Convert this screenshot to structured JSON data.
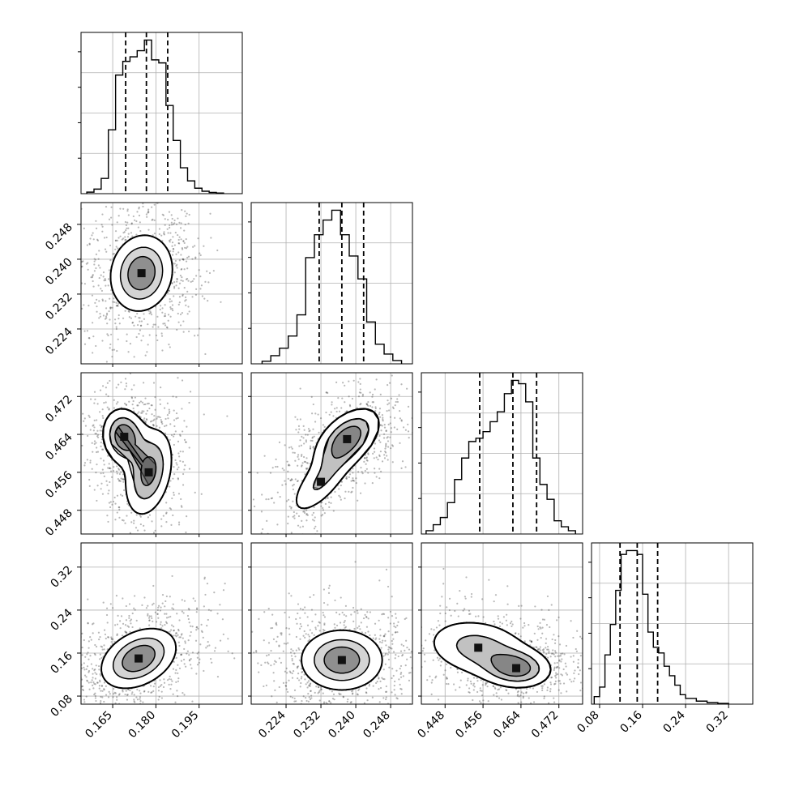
{
  "chart_data": {
    "type": "corner",
    "grid": true,
    "parameters": [
      {
        "id": "p0",
        "range": [
          0.154,
          0.21
        ],
        "ticks": [
          0.165,
          0.18,
          0.195
        ],
        "tick_labels": [
          "0.165",
          "0.180",
          "0.195"
        ],
        "quantiles": [
          0.1695,
          0.1767,
          0.1841
        ],
        "mean": 0.1767,
        "sd": 0.0072
      },
      {
        "id": "p1",
        "range": [
          0.216,
          0.253
        ],
        "ticks": [
          0.224,
          0.232,
          0.24,
          0.248
        ],
        "tick_labels": [
          "0.224",
          "0.232",
          "0.240",
          "0.248"
        ],
        "quantiles": [
          0.2316,
          0.2368,
          0.2418
        ],
        "mean": 0.2368,
        "sd": 0.0051
      },
      {
        "id": "p2",
        "range": [
          0.443,
          0.477
        ],
        "ticks": [
          0.448,
          0.456,
          0.464,
          0.472
        ],
        "tick_labels": [
          "0.448",
          "0.456",
          "0.464",
          "0.472"
        ],
        "quantiles": [
          0.4553,
          0.4623,
          0.4673
        ],
        "mean": 0.4618,
        "sd": 0.0057
      },
      {
        "id": "p3",
        "range": [
          0.065,
          0.365
        ],
        "ticks": [
          0.08,
          0.16,
          0.24,
          0.32
        ],
        "tick_labels": [
          "0.08",
          "0.16",
          "0.24",
          "0.32"
        ],
        "quantiles": [
          0.118,
          0.15,
          0.188
        ],
        "mean": 0.15,
        "sd": 0.034
      }
    ],
    "histograms": [
      {
        "param": "p0",
        "bins": [
          0.156,
          0.1585,
          0.161,
          0.1635,
          0.166,
          0.1685,
          0.171,
          0.1735,
          0.176,
          0.1785,
          0.181,
          0.1835,
          0.186,
          0.1885,
          0.191,
          0.1935,
          0.196,
          0.1985,
          0.201,
          0.2035
        ],
        "counts": [
          5,
          15,
          50,
          210,
          390,
          435,
          450,
          470,
          505,
          440,
          430,
          290,
          175,
          85,
          42,
          18,
          8,
          4,
          2
        ]
      },
      {
        "param": "p1",
        "bins": [
          0.2185,
          0.2205,
          0.2225,
          0.2245,
          0.2265,
          0.2285,
          0.2305,
          0.2325,
          0.2345,
          0.2365,
          0.2385,
          0.2405,
          0.2425,
          0.2445,
          0.2465,
          0.2485,
          0.2505
        ],
        "counts": [
          8,
          25,
          48,
          85,
          150,
          325,
          395,
          440,
          470,
          395,
          330,
          260,
          128,
          60,
          30,
          10
        ]
      },
      {
        "param": "p2",
        "bins": [
          0.444,
          0.4455,
          0.447,
          0.4485,
          0.45,
          0.4515,
          0.453,
          0.4545,
          0.456,
          0.4575,
          0.459,
          0.4605,
          0.462,
          0.4635,
          0.465,
          0.4665,
          0.468,
          0.4695,
          0.471,
          0.4725,
          0.474,
          0.4755
        ],
        "counts": [
          10,
          28,
          50,
          95,
          165,
          230,
          280,
          290,
          310,
          340,
          370,
          425,
          465,
          455,
          400,
          230,
          150,
          105,
          40,
          22,
          10
        ]
      },
      {
        "param": "p3",
        "bins": [
          0.07,
          0.08,
          0.09,
          0.1,
          0.11,
          0.12,
          0.13,
          0.14,
          0.15,
          0.16,
          0.17,
          0.18,
          0.19,
          0.2,
          0.21,
          0.22,
          0.23,
          0.24,
          0.26,
          0.28,
          0.3,
          0.32
        ],
        "counts": [
          20,
          45,
          130,
          210,
          300,
          395,
          405,
          405,
          395,
          290,
          190,
          150,
          135,
          100,
          75,
          50,
          25,
          15,
          8,
          4,
          2
        ]
      }
    ],
    "pairs": [
      {
        "x": "p0",
        "y": "p1",
        "modes": [
          {
            "mx": 0.175,
            "my": 0.2368,
            "sx": 0.0058,
            "sy": 0.0047,
            "r": 0.1,
            "w": 1.0
          }
        ]
      },
      {
        "x": "p0",
        "y": "p2",
        "modes": [
          {
            "mx": 0.169,
            "my": 0.4635,
            "sx": 0.004,
            "sy": 0.0032,
            "r": -0.1,
            "w": 1.0
          },
          {
            "mx": 0.1775,
            "my": 0.456,
            "sx": 0.0045,
            "sy": 0.005,
            "r": 0.3,
            "w": 0.85
          }
        ]
      },
      {
        "x": "p1",
        "y": "p2",
        "modes": [
          {
            "mx": 0.238,
            "my": 0.463,
            "sx": 0.004,
            "sy": 0.0035,
            "r": 0.5,
            "w": 1.0
          },
          {
            "mx": 0.232,
            "my": 0.454,
            "sx": 0.004,
            "sy": 0.004,
            "r": 0.7,
            "w": 0.5
          }
        ]
      },
      {
        "x": "p0",
        "y": "p3",
        "modes": [
          {
            "mx": 0.174,
            "my": 0.15,
            "sx": 0.007,
            "sy": 0.03,
            "r": 0.35,
            "w": 1.0
          }
        ]
      },
      {
        "x": "p1",
        "y": "p3",
        "modes": [
          {
            "mx": 0.2368,
            "my": 0.147,
            "sx": 0.005,
            "sy": 0.03,
            "r": 0.0,
            "w": 1.0
          }
        ]
      },
      {
        "x": "p2",
        "y": "p3",
        "modes": [
          {
            "mx": 0.463,
            "my": 0.132,
            "sx": 0.004,
            "sy": 0.02,
            "r": -0.1,
            "w": 1.0
          },
          {
            "mx": 0.455,
            "my": 0.17,
            "sx": 0.006,
            "sy": 0.03,
            "r": -0.2,
            "w": 0.7
          }
        ]
      }
    ]
  }
}
